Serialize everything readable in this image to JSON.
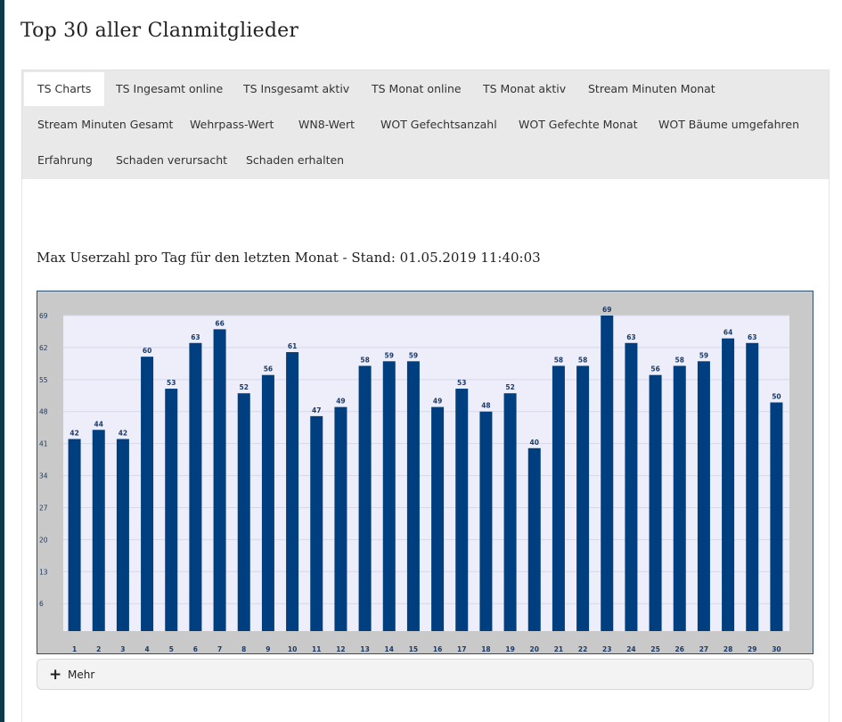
{
  "page": {
    "title": "Top 30 aller Clanmitglieder"
  },
  "tabs": [
    {
      "label": "TS Charts",
      "active": true
    },
    {
      "label": "TS Ingesamt online"
    },
    {
      "label": "TS Insgesamt aktiv"
    },
    {
      "label": "TS Monat online"
    },
    {
      "label": "TS Monat aktiv"
    },
    {
      "label": "Stream Minuten Monat"
    },
    {
      "label": "Stream Minuten Gesamt"
    },
    {
      "label": "Wehrpass-Wert"
    },
    {
      "label": "WN8-Wert"
    },
    {
      "label": "WOT Gefechtsanzahl"
    },
    {
      "label": "WOT Gefechte Monat"
    },
    {
      "label": "WOT Bäume umgefahren"
    },
    {
      "label": "Erfahrung"
    },
    {
      "label": "Schaden verursacht"
    },
    {
      "label": "Schaden erhalten"
    }
  ],
  "chart_heading": "Max Userzahl pro Tag für den letzten Monat - Stand: 01.05.2019 11:40:03",
  "more": {
    "label": "Mehr",
    "icon": "plus-icon"
  },
  "colors": {
    "bar": "#003f7f",
    "plot_bg": "#eeeefb",
    "frame_bg": "#c9c9c9",
    "label": "#1b3a66"
  },
  "chart_data": {
    "type": "bar",
    "categories": [
      "1",
      "2",
      "3",
      "4",
      "5",
      "6",
      "7",
      "8",
      "9",
      "10",
      "11",
      "12",
      "13",
      "14",
      "15",
      "16",
      "17",
      "18",
      "19",
      "20",
      "21",
      "22",
      "23",
      "24",
      "25",
      "26",
      "27",
      "28",
      "29",
      "30"
    ],
    "values": [
      42,
      44,
      42,
      60,
      53,
      63,
      66,
      52,
      56,
      61,
      47,
      49,
      58,
      59,
      59,
      49,
      53,
      48,
      52,
      40,
      58,
      58,
      69,
      63,
      56,
      58,
      59,
      64,
      63,
      50
    ],
    "yticks": [
      6,
      13,
      20,
      27,
      34,
      41,
      48,
      55,
      62,
      69
    ],
    "ylim": [
      0,
      69
    ],
    "grid": true,
    "title": "",
    "xlabel": "",
    "ylabel": ""
  }
}
